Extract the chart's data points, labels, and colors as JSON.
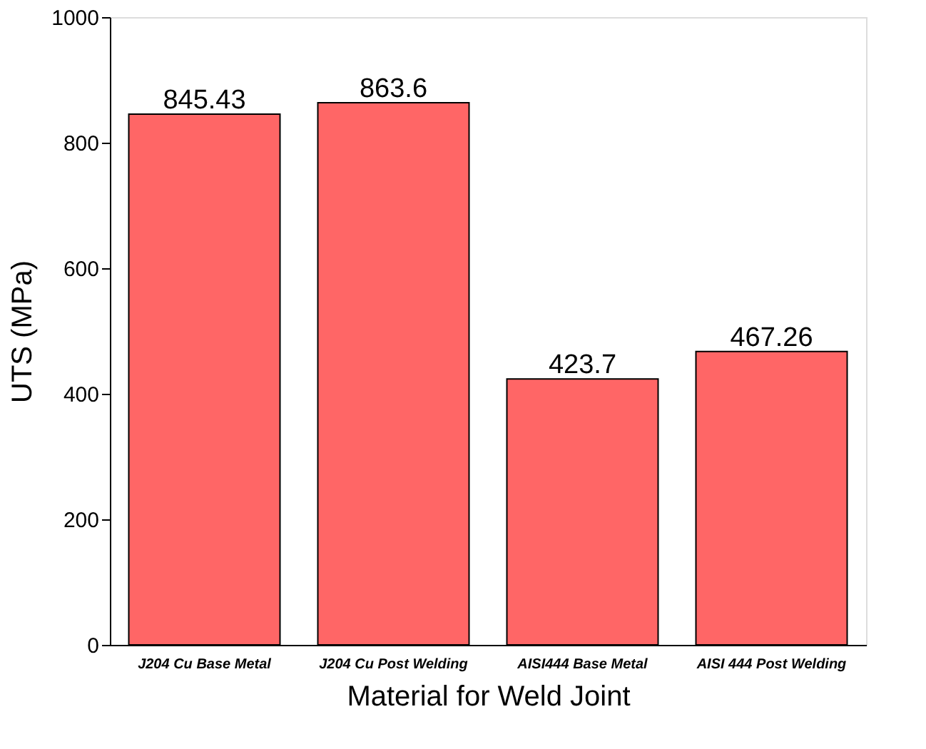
{
  "chart_data": {
    "type": "bar",
    "categories": [
      "J204 Cu Base Metal",
      "J204 Cu Post Welding",
      "AISI444 Base Metal",
      "AISI 444 Post Welding"
    ],
    "values": [
      845.43,
      863.6,
      423.7,
      467.26
    ],
    "color": "#ff6666",
    "xlabel": "Material for Weld Joint",
    "ylabel": "UTS (MPa)",
    "ylim": [
      0,
      1000
    ],
    "yticks": [
      0,
      200,
      400,
      600,
      800,
      1000
    ],
    "data_labels": true,
    "grid": false
  }
}
